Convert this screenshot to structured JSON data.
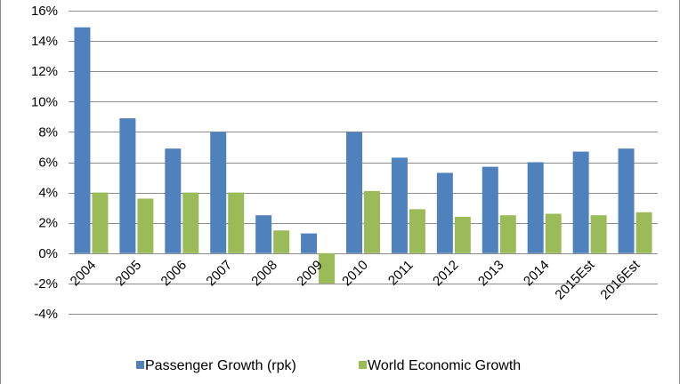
{
  "chart_data": {
    "type": "bar",
    "title": "",
    "xlabel": "",
    "ylabel": "",
    "categories": [
      "2004",
      "2005",
      "2006",
      "2007",
      "2008",
      "2009",
      "2010",
      "2011",
      "2012",
      "2013",
      "2014",
      "2015Est",
      "2016Est"
    ],
    "series": [
      {
        "name": "Passenger Growth (rpk)",
        "color": "#4f81bd",
        "values": [
          14.9,
          8.9,
          6.9,
          8.0,
          2.5,
          1.3,
          8.0,
          6.3,
          5.3,
          5.7,
          6.0,
          6.7,
          6.9
        ]
      },
      {
        "name": "World Economic Growth",
        "color": "#9bbb59",
        "values": [
          4.0,
          3.6,
          4.0,
          4.0,
          1.5,
          -2.0,
          4.1,
          2.9,
          2.4,
          2.5,
          2.6,
          2.5,
          2.7
        ]
      }
    ],
    "ylim": [
      -4,
      16
    ],
    "yticks": [
      -4,
      -2,
      0,
      2,
      4,
      6,
      8,
      10,
      12,
      14,
      16
    ],
    "ytick_labels": [
      "-4%",
      "-2%",
      "0%",
      "2%",
      "4%",
      "6%",
      "8%",
      "10%",
      "12%",
      "14%",
      "16%"
    ],
    "grid": true,
    "legend_position": "bottom"
  }
}
